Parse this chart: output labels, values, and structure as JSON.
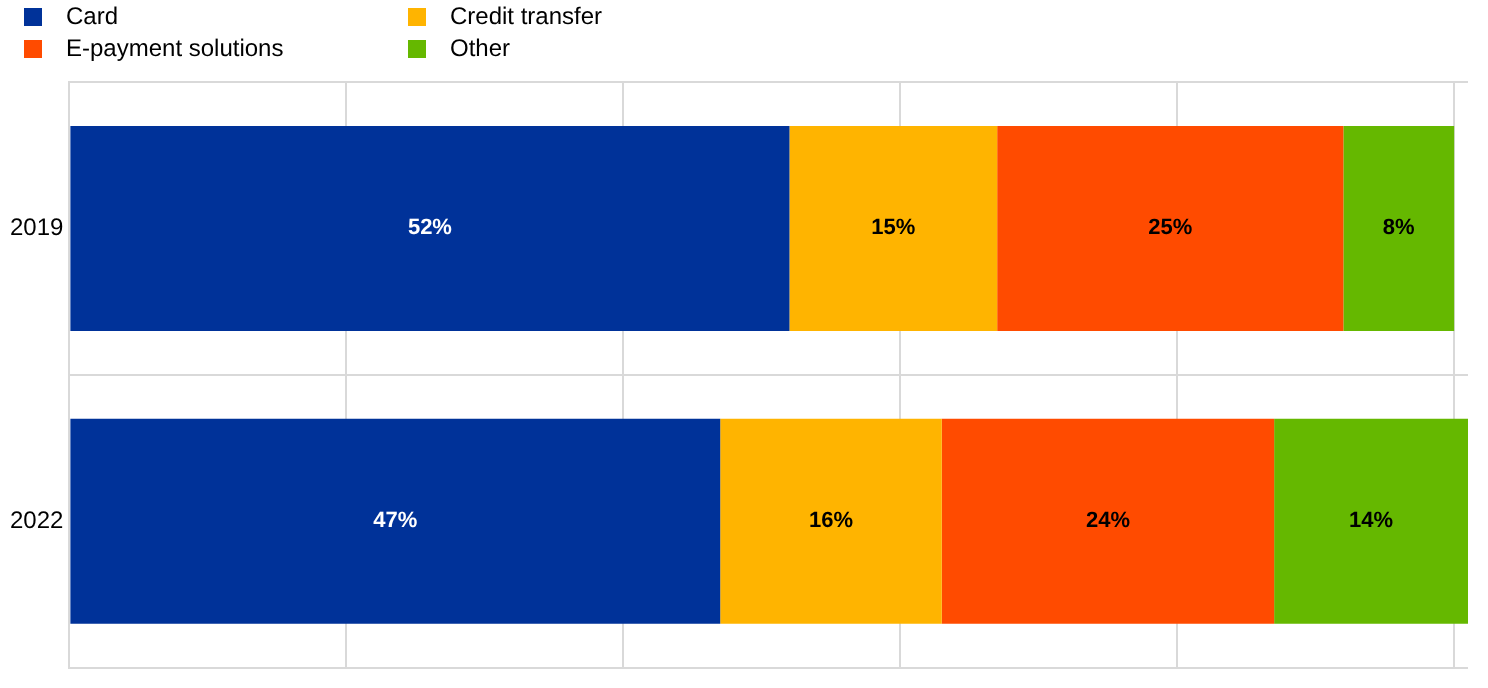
{
  "chart_data": {
    "type": "bar",
    "orientation": "horizontal",
    "stacked": true,
    "categories": [
      "2019",
      "2022"
    ],
    "series": [
      {
        "name": "Card",
        "color": "#003299",
        "values": [
          52,
          47
        ],
        "value_labels": [
          "52%",
          "47%"
        ]
      },
      {
        "name": "Credit transfer",
        "color": "#ffb400",
        "values": [
          15,
          16
        ],
        "value_labels": [
          "15%",
          "16%"
        ]
      },
      {
        "name": "E-payment solutions",
        "color": "#ff4b00",
        "values": [
          25,
          24
        ],
        "value_labels": [
          "25%",
          "24%"
        ]
      },
      {
        "name": "Other",
        "color": "#65b800",
        "values": [
          8,
          14
        ],
        "value_labels": [
          "8%",
          "14%"
        ]
      }
    ],
    "xlim": [
      0,
      101
    ],
    "xticks": [
      {
        "value": 0,
        "label": null
      },
      {
        "value": 20,
        "label": null
      },
      {
        "value": 40,
        "label": null
      },
      {
        "value": 60,
        "label": null
      },
      {
        "value": 80,
        "label": null
      },
      {
        "value": 100,
        "label": null
      }
    ],
    "tick_labels": "y",
    "grid": true,
    "legend": "top left"
  }
}
